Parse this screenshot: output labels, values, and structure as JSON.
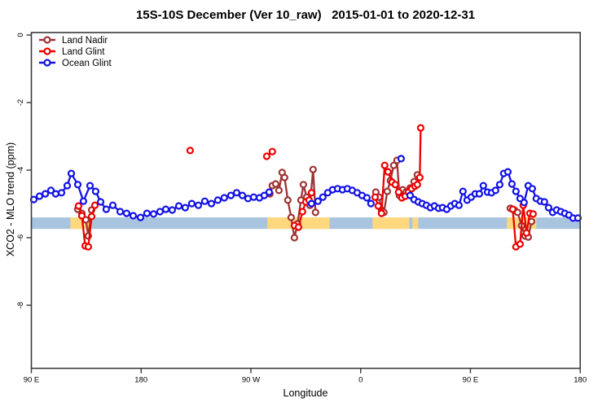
{
  "chart_data": {
    "type": "line",
    "title": "15S-10S December (Ver 10_raw)   2015-01-01 to 2020-12-31",
    "xlabel": "Longitude",
    "ylabel": "XCO2 - MLO trend (ppm)",
    "x_axis": {
      "min": 90,
      "max": 540,
      "note": "longitude axis wraps eastward: 90E -> 180 -> 90W -> 0 -> 90E -> 180; stored x = degrees east of 0 without wrap (90..540)",
      "ticks": [
        {
          "value": 90,
          "label": "90 E"
        },
        {
          "value": 180,
          "label": "180"
        },
        {
          "value": 270,
          "label": "90 W"
        },
        {
          "value": 360,
          "label": "0"
        },
        {
          "value": 450,
          "label": "90 E"
        },
        {
          "value": 540,
          "label": "180"
        }
      ]
    },
    "y_axis": {
      "min": -9.9,
      "max": 0.1,
      "ticks": [
        {
          "value": 0,
          "label": "0"
        },
        {
          "value": -2,
          "label": "-2"
        },
        {
          "value": -4,
          "label": "-4"
        },
        {
          "value": -6,
          "label": "-6"
        },
        {
          "value": -8,
          "label": "-8"
        }
      ]
    },
    "bands": {
      "ocean_band": {
        "color": "#a9c4de",
        "x_from": 90,
        "x_to": 540,
        "y_top": -5.4,
        "y_bottom": -5.74
      },
      "land_band_color": "#ffd87d",
      "land_band_segments": [
        {
          "x_from": 122.0,
          "x_to": 139.5
        },
        {
          "x_from": 283.5,
          "x_to": 334.5
        },
        {
          "x_from": 369.8,
          "x_to": 399.8
        },
        {
          "x_from": 402.5,
          "x_to": 407.2
        },
        {
          "x_from": 480.0,
          "x_to": 504.0
        }
      ]
    },
    "legend": {
      "position": "top-left",
      "items": [
        "Land Nadir",
        "Land Glint",
        "Ocean Glint"
      ]
    },
    "series": [
      {
        "name": "Land Nadir",
        "color": "#9e3434",
        "segments": [
          [
            [
              128.1,
              -5.16
            ],
            [
              131.4,
              -5.28
            ],
            [
              134.7,
              -5.47
            ],
            [
              136.7,
              -5.95
            ],
            [
              139.4,
              -5.18
            ]
          ],
          [
            [
              285.6,
              -4.7
            ],
            [
              287.6,
              -4.46
            ],
            [
              290.3,
              -4.41
            ],
            [
              293.0,
              -4.6
            ],
            [
              295.6,
              -4.07
            ],
            [
              297.6,
              -4.22
            ],
            [
              300.3,
              -4.89
            ],
            [
              303.0,
              -5.4
            ],
            [
              305.7,
              -6.0
            ],
            [
              308.3,
              -5.59
            ],
            [
              311.0,
              -4.89
            ],
            [
              313.0,
              -4.43
            ],
            [
              315.7,
              -4.8
            ],
            [
              318.4,
              -5.04
            ],
            [
              321.0,
              -3.98
            ],
            [
              323.0,
              -5.25
            ]
          ],
          [
            [
              372.4,
              -4.65
            ],
            [
              375.1,
              -4.8
            ],
            [
              377.1,
              -5.18
            ],
            [
              379.1,
              -5.25
            ],
            [
              381.8,
              -4.63
            ],
            [
              384.4,
              -4.31
            ],
            [
              387.1,
              -3.86
            ],
            [
              389.8,
              -3.71
            ],
            [
              391.8,
              -4.75
            ],
            [
              394.5,
              -4.58
            ],
            [
              397.1,
              -4.65
            ],
            [
              400.5,
              -4.53
            ],
            [
              403.8,
              -4.34
            ],
            [
              406.5,
              -4.14
            ]
          ],
          [
            [
              482.7,
              -5.13
            ],
            [
              486.0,
              -5.18
            ],
            [
              488.7,
              -5.25
            ],
            [
              492.0,
              -5.64
            ],
            [
              494.7,
              -5.95
            ],
            [
              497.4,
              -5.98
            ],
            [
              500.1,
              -5.52
            ]
          ]
        ]
      },
      {
        "name": "Land Glint",
        "color": "#ee0000",
        "segments": [
          [
            [
              128.7,
              -5.06
            ],
            [
              131.4,
              -5.35
            ],
            [
              134.1,
              -6.24
            ],
            [
              136.7,
              -6.27
            ],
            [
              139.4,
              -5.37
            ],
            [
              142.1,
              -5.04
            ]
          ],
          [
            [
              220.2,
              -3.42
            ]
          ],
          [
            [
              283.0,
              -3.59
            ],
            [
              287.6,
              -3.45
            ]
          ],
          [
            [
              305.7,
              -5.64
            ],
            [
              309.0,
              -5.69
            ],
            [
              312.3,
              -5.23
            ],
            [
              315.0,
              -4.94
            ],
            [
              317.7,
              -4.89
            ],
            [
              319.7,
              -4.67
            ]
          ],
          [
            [
              371.8,
              -4.8
            ],
            [
              374.4,
              -5.06
            ],
            [
              377.1,
              -5.28
            ],
            [
              379.7,
              -3.86
            ],
            [
              382.4,
              -4.05
            ],
            [
              385.8,
              -4.36
            ],
            [
              388.4,
              -4.43
            ],
            [
              391.1,
              -4.65
            ],
            [
              393.8,
              -4.82
            ],
            [
              396.5,
              -4.77
            ],
            [
              399.1,
              -4.65
            ],
            [
              401.8,
              -4.55
            ],
            [
              404.5,
              -4.48
            ],
            [
              406.5,
              -4.43
            ],
            [
              408.5,
              -4.22
            ],
            [
              409.2,
              -2.75
            ]
          ],
          [
            [
              484.7,
              -5.16
            ],
            [
              487.3,
              -6.27
            ],
            [
              490.7,
              -6.19
            ],
            [
              493.3,
              -5.04
            ],
            [
              496.0,
              -5.86
            ],
            [
              498.7,
              -5.28
            ],
            [
              501.4,
              -5.3
            ]
          ]
        ]
      },
      {
        "name": "Ocean Glint",
        "color": "#1212e6",
        "segments": [
          [
            [
              92.0,
              -4.87
            ],
            [
              96.7,
              -4.77
            ],
            [
              101.4,
              -4.7
            ],
            [
              106.0,
              -4.6
            ],
            [
              110.0,
              -4.7
            ],
            [
              114.7,
              -4.67
            ],
            [
              119.4,
              -4.46
            ],
            [
              122.7,
              -4.1
            ],
            [
              128.1,
              -4.43
            ],
            [
              132.7,
              -4.92
            ],
            [
              138.1,
              -4.46
            ],
            [
              142.7,
              -4.63
            ],
            [
              146.8,
              -4.94
            ],
            [
              151.4,
              -5.16
            ],
            [
              156.8,
              -5.04
            ],
            [
              162.8,
              -5.23
            ],
            [
              168.1,
              -5.28
            ],
            [
              173.5,
              -5.35
            ],
            [
              179.5,
              -5.4
            ],
            [
              184.8,
              -5.28
            ],
            [
              190.2,
              -5.3
            ],
            [
              195.5,
              -5.23
            ],
            [
              200.2,
              -5.16
            ],
            [
              205.5,
              -5.18
            ],
            [
              210.9,
              -5.06
            ],
            [
              216.2,
              -5.11
            ],
            [
              221.5,
              -4.99
            ],
            [
              226.9,
              -5.04
            ],
            [
              232.2,
              -4.92
            ],
            [
              237.6,
              -4.99
            ],
            [
              242.9,
              -4.89
            ],
            [
              248.2,
              -4.82
            ],
            [
              253.6,
              -4.75
            ],
            [
              258.3,
              -4.67
            ],
            [
              263.0,
              -4.75
            ],
            [
              267.6,
              -4.84
            ],
            [
              272.3,
              -4.8
            ],
            [
              277.0,
              -4.82
            ],
            [
              281.0,
              -4.75
            ],
            [
              285.0,
              -4.65
            ]
          ],
          [
            [
              319.7,
              -4.99
            ],
            [
              325.0,
              -4.92
            ],
            [
              329.0,
              -4.8
            ],
            [
              333.0,
              -4.67
            ],
            [
              337.0,
              -4.58
            ],
            [
              341.1,
              -4.55
            ],
            [
              345.1,
              -4.58
            ],
            [
              349.1,
              -4.55
            ],
            [
              353.1,
              -4.6
            ],
            [
              357.1,
              -4.67
            ],
            [
              361.1,
              -4.75
            ],
            [
              365.1,
              -4.82
            ],
            [
              368.4,
              -4.99
            ]
          ],
          [
            [
              393.2,
              -3.66
            ]
          ],
          [
            [
              400.5,
              -4.75
            ],
            [
              403.8,
              -4.87
            ],
            [
              407.2,
              -4.94
            ],
            [
              410.5,
              -4.99
            ],
            [
              413.9,
              -5.04
            ],
            [
              417.2,
              -5.11
            ],
            [
              420.5,
              -5.06
            ],
            [
              423.9,
              -5.13
            ],
            [
              427.2,
              -5.11
            ],
            [
              430.6,
              -5.16
            ],
            [
              433.9,
              -5.06
            ],
            [
              437.2,
              -4.99
            ],
            [
              440.6,
              -5.04
            ],
            [
              443.9,
              -4.63
            ],
            [
              447.3,
              -4.89
            ],
            [
              450.6,
              -4.8
            ],
            [
              453.9,
              -4.7
            ],
            [
              457.3,
              -4.7
            ],
            [
              460.6,
              -4.46
            ],
            [
              464.0,
              -4.65
            ],
            [
              467.3,
              -4.67
            ],
            [
              470.6,
              -4.6
            ],
            [
              474.0,
              -4.43
            ],
            [
              477.3,
              -4.1
            ],
            [
              480.7,
              -4.05
            ],
            [
              484.0,
              -4.41
            ],
            [
              487.3,
              -4.63
            ],
            [
              490.7,
              -4.84
            ],
            [
              494.0,
              -4.96
            ],
            [
              497.4,
              -4.46
            ],
            [
              500.7,
              -4.55
            ],
            [
              504.0,
              -4.84
            ],
            [
              507.4,
              -4.92
            ],
            [
              510.7,
              -4.94
            ],
            [
              514.1,
              -5.11
            ],
            [
              517.4,
              -5.25
            ],
            [
              520.7,
              -5.18
            ],
            [
              524.1,
              -5.23
            ],
            [
              527.4,
              -5.28
            ],
            [
              530.8,
              -5.33
            ],
            [
              534.1,
              -5.42
            ],
            [
              538.1,
              -5.42
            ]
          ]
        ]
      }
    ]
  }
}
